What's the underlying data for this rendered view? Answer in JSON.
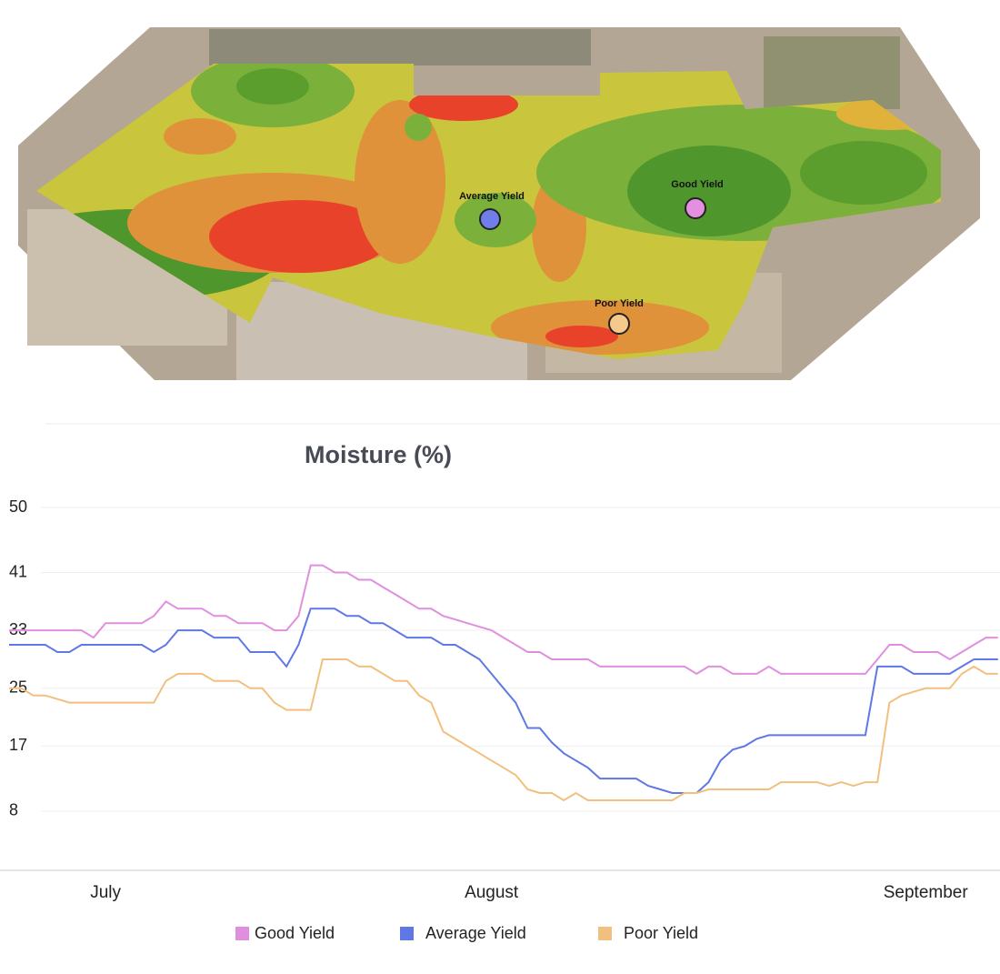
{
  "map": {
    "markers": [
      {
        "label": "Average Yield"
      },
      {
        "label": "Good Yield"
      },
      {
        "label": "Poor Yield"
      }
    ]
  },
  "chart_data": {
    "type": "line",
    "title": "Moisture (%)",
    "categories": [
      null,
      null,
      null,
      null,
      null,
      null,
      null,
      null,
      "July",
      null,
      null,
      null,
      null,
      null,
      null,
      null,
      null,
      null,
      null,
      null,
      null,
      null,
      null,
      null,
      null,
      null,
      null,
      null,
      null,
      null,
      null,
      null,
      null,
      null,
      null,
      null,
      null,
      null,
      null,
      null,
      "August",
      null,
      null,
      null,
      null,
      null,
      null,
      null,
      null,
      null,
      null,
      null,
      null,
      null,
      null,
      null,
      null,
      null,
      null,
      null,
      null,
      null,
      null,
      null,
      null,
      null,
      null,
      null,
      null,
      null,
      null,
      null,
      null,
      null,
      null,
      null,
      "September",
      null,
      null,
      null,
      null,
      null,
      null
    ],
    "series": [
      {
        "name": "Good Yield",
        "color": "#e08fdf",
        "values": [
          33,
          33,
          33,
          33,
          33,
          33,
          33,
          32,
          34,
          34,
          34,
          34,
          35,
          37,
          36,
          36,
          36,
          35,
          35,
          34,
          34,
          34,
          33,
          33,
          35,
          42,
          42,
          41,
          41,
          40,
          40,
          39,
          38,
          37,
          36,
          36,
          35,
          34.5,
          34,
          33.5,
          33,
          32,
          31,
          30,
          30,
          29,
          29,
          29,
          29,
          28,
          28,
          28,
          28,
          28,
          28,
          28,
          28,
          27,
          28,
          28,
          27,
          27,
          27,
          28,
          27,
          27,
          27,
          27,
          27,
          27,
          27,
          27,
          29,
          31,
          31,
          30,
          30,
          30,
          29,
          30,
          31,
          32,
          32
        ]
      },
      {
        "name": "Average Yield",
        "color": "#5f78e6",
        "values": [
          31,
          31,
          31,
          31,
          30,
          30,
          31,
          31,
          31,
          31,
          31,
          31,
          30,
          31,
          33,
          33,
          33,
          32,
          32,
          32,
          30,
          30,
          30,
          28,
          31,
          36,
          36,
          36,
          35,
          35,
          34,
          34,
          33,
          32,
          32,
          32,
          31,
          31,
          30,
          29,
          27,
          25,
          23,
          19.5,
          19.5,
          17.5,
          16,
          15,
          14,
          12.5,
          12.5,
          12.5,
          12.5,
          11.5,
          11,
          10.5,
          10.5,
          10.5,
          12,
          15,
          16.5,
          17,
          18,
          18.5,
          18.5,
          18.5,
          18.5,
          18.5,
          18.5,
          18.5,
          18.5,
          18.5,
          28,
          28,
          28,
          27,
          27,
          27,
          27,
          28,
          29,
          29,
          29
        ]
      },
      {
        "name": "Poor Yield",
        "color": "#f2c07e",
        "values": [
          25,
          25,
          24,
          24,
          23.5,
          23,
          23,
          23,
          23,
          23,
          23,
          23,
          23,
          26,
          27,
          27,
          27,
          26,
          26,
          26,
          25,
          25,
          23,
          22,
          22,
          22,
          29,
          29,
          29,
          28,
          28,
          27,
          26,
          26,
          24,
          23,
          19,
          18,
          17,
          16,
          15,
          14,
          13,
          11,
          10.5,
          10.5,
          9.5,
          10.5,
          9.5,
          9.5,
          9.5,
          9.5,
          9.5,
          9.5,
          9.5,
          9.5,
          10.5,
          10.5,
          11,
          11,
          11,
          11,
          11,
          11,
          12,
          12,
          12,
          12,
          11.5,
          12,
          11.5,
          12,
          12,
          23,
          24,
          24.5,
          25,
          25,
          25,
          27,
          28,
          27,
          27
        ]
      }
    ],
    "ylim": [
      0,
      50
    ],
    "yticks": [
      8,
      17,
      25,
      33,
      41,
      50
    ],
    "grid": true
  }
}
